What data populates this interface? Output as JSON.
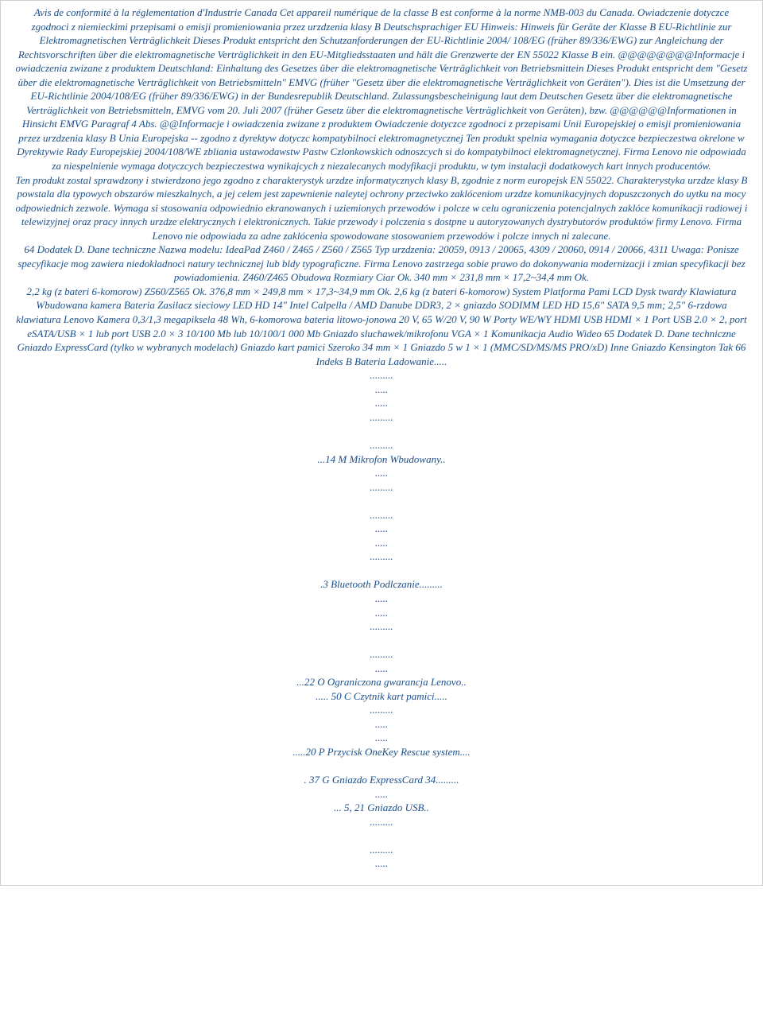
{
  "para1": "Avis de conformité à la réglementation d'Industrie Canada Cet appareil numérique de la classe B est conforme à la norme NMB-003 du Canada. Owiadczenie dotyczce zgodnoci z niemieckimi przepisami o emisji promieniowania przez urzdzenia klasy B Deutschsprachiger EU Hinweis: Hinweis für Geräte der Klasse B EU-Richtlinie zur Elektromagnetischen Verträglichkeit Dieses Produkt entspricht den Schutzanforderungen der EU-Richtlinie 2004/ 108/EG (früher 89/336/EWG) zur Angleichung der Rechtsvorschriften über die elektromagnetische Verträglichkeit in den EU-Mitgliedsstaaten und hält die Grenzwerte der EN 55022 Klasse B ein. @@@@@@@@Informacje i owiadczenia zwizane z produktem Deutschland: Einhaltung des Gesetzes über die elektromagnetische Verträglichkeit von Betriebsmittein Dieses Produkt entspricht dem \"Gesetz über die elektromagnetische Verträglichkeit von Betriebsmitteln\" EMVG (früher \"Gesetz über die elektromagnetische Verträglichkeit von Geräten\"). Dies ist die Umsetzung der EU-Richtlinie 2004/108/EG (früher 89/336/EWG) in der Bundesrepublik Deutschland. Zulassungsbescheinigung laut dem Deutschen Gesetz über die elektromagnetische Verträglichkeit von Betriebsmitteln, EMVG vom 20. Juli 2007 (früher Gesetz über die elektromagnetische Verträglichkeit von Geräten), bzw. @@@@@@Informationen in Hinsicht EMVG Paragraf 4 Abs. @@Informacje i owiadczenia zwizane z produktem Owiadczenie dotyczce zgodnoci z przepisami Unii Europejskiej o emisji promieniowania przez urzdzenia klasy B Unia Europejska -- zgodno z dyrektyw dotyczc kompatybilnoci elektromagnetycznej Ten produkt spelnia wymagania dotyczce bezpieczestwa okrelone w Dyrektywie Rady Europejskiej 2004/108/WE zbliania ustawodawstw Pastw Czlonkowskich odnoszcych si do kompatybilnoci elektromagnetycznej. Firma Lenovo nie odpowiada za niespelnienie wymaga dotyczcych bezpieczestwa wynikajcych z niezalecanych modyfikacji produktu, w tym instalacji dodatkowych kart innych producentów.",
  "para2": "Ten produkt zostal sprawdzony i stwierdzono jego zgodno z charakterystyk urzdze informatycznych klasy B, zgodnie z norm europejsk EN 55022. Charakterystyka urzdze klasy B powstala dla typowych obszarów mieszkalnych, a jej celem jest zapewnienie naleytej ochrony przeciwko zaklóceniom urzdze komunikacyjnych dopuszczonych do uytku na mocy odpowiednich zezwole. Wymaga si stosowania odpowiednio ekranowanych i uziemionych przewodów i polcze w celu ograniczenia potencjalnych zaklóce komunikacji radiowej i telewizyjnej oraz pracy innych urzdze elektrycznych i elektronicznych. Takie przewody i polczenia s dostpne u autoryzowanych dystrybutorów produktów firmy Lenovo. Firma Lenovo nie odpowiada za adne zaklócenia spowodowane stosowaniem przewodów i polcze innych ni zalecane.",
  "para3": "64 Dodatek D. Dane techniczne Nazwa modelu: IdeaPad Z460 / Z465 / Z560 / Z565 Typ urzdzenia: 20059, 0913 / 20065, 4309 / 20060, 0914 / 20066, 4311 Uwaga: Ponisze specyfikacje mog zawiera niedokladnoci natury technicznej lub bldy typograficzne. Firma Lenovo zastrzega sobie prawo do dokonywania modernizacji i zmian specyfikacji bez powiadomienia. Z460/Z465 Obudowa Rozmiary Ciar Ok. 340 mm × 231,8 mm × 17,2~34,4 mm Ok.",
  "para4": "2,2 kg (z bateri 6-komorow) Z560/Z565 Ok. 376,8 mm × 249,8 mm × 17,3~34,9 mm Ok. 2,6 kg (z bateri 6-komorow) System Platforma Pami LCD Dysk twardy Klawiatura Wbudowana kamera Bateria Zasilacz sieciowy LED HD 14\" Intel Calpella / AMD Danube DDR3, 2 × gniazdo SODIMM LED HD 15,6\" SATA 9,5 mm; 2,5\" 6-rzdowa klawiatura Lenovo Kamera 0,3/1,3 megapiksela 48 Wh, 6-komorowa bateria litowo-jonowa 20 V, 65 W/20 V, 90 W Porty WE/WY HDMI USB HDMI × 1 Port USB 2.0 × 2, port eSATA/USB × 1 lub port USB 2.0 × 3 10/100 Mb lub 10/100/1 000 Mb Gniazdo sluchawek/mikrofonu VGA × 1 Komunikacja Audio Wideo 65 Dodatek D. Dane techniczne Gniazdo ExpressCard (tylko w wybranych modelach) Gniazdo kart pamici Szeroko 34 mm × 1 Gniazdo 5 w 1 × 1 (MMC/SD/MS/MS PRO/xD) Inne Gniazdo Kensington Tak 66 Indeks B Bateria Ladowanie.....",
  "sec_a": {
    "d1": ".........",
    "d2": ".....",
    "d3": ".....",
    "d4": ".........",
    "d5": "",
    "d6": ".........",
    "line": "...14 M Mikrofon Wbudowany.."
  },
  "sec_b": {
    "d1": ".....",
    "d2": ".........",
    "d3": "",
    "d4": ".........",
    "d5": ".....",
    "d6": ".....",
    "d7": ".........",
    "d8": "",
    "line": ".3 Bluetooth Podlczanie........."
  },
  "sec_c": {
    "d1": ".....",
    "d2": ".....",
    "d3": ".........",
    "d4": "",
    "d5": ".........",
    "d6": ".....",
    "line1": "...22 O Ograniczona gwarancja Lenovo..",
    "line2": "..... 50 C Czytnik kart pamici....."
  },
  "sec_d": {
    "d1": ".........",
    "d2": ".....",
    "d3": ".....",
    "line1": ".....20 P Przycisk OneKey Rescue system....",
    "d4": "",
    "line2": ". 37 G Gniazdo ExpressCard 34.........",
    "d5": ".....",
    "line3": "... 5, 21 Gniazdo USB..",
    "d6": ".........",
    "d7": "",
    "d8": ".........",
    "d9": "....."
  }
}
